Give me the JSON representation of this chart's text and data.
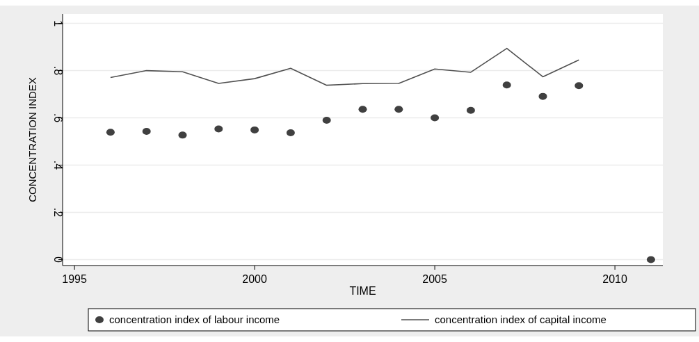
{
  "chart_data": {
    "type": "scatter",
    "xlabel": "TIME",
    "ylabel": "CONCENTRATION INDEX",
    "xlim": [
      1994.67,
      2011.33
    ],
    "xticks": [
      1995,
      2000,
      2005,
      2010
    ],
    "ylim": [
      -0.025,
      1.04
    ],
    "yticks": [
      {
        "value": 0,
        "label": "0"
      },
      {
        "value": 0.2,
        "label": ".2"
      },
      {
        "value": 0.4,
        "label": ".4"
      },
      {
        "value": 0.6,
        "label": ".6"
      },
      {
        "value": 0.8,
        "label": ".8"
      },
      {
        "value": 1,
        "label": "1"
      }
    ],
    "grid": "y",
    "legend": "bottom",
    "series": [
      {
        "name": "concentration index of labour income",
        "marker": "circle",
        "color": "#404040",
        "x": [
          1996,
          1997,
          1998,
          1999,
          2000,
          2001,
          2002,
          2003,
          2004,
          2005,
          2006,
          2007,
          2008,
          2009,
          2011
        ],
        "values": [
          0.539,
          0.543,
          0.527,
          0.553,
          0.549,
          0.537,
          0.59,
          0.636,
          0.636,
          0.6,
          0.632,
          0.739,
          0.691,
          0.736,
          0
        ]
      },
      {
        "name": "concentration index of capital income",
        "type": "line",
        "marker": "none",
        "line_style": "solid",
        "color": "#505050",
        "x": [
          1996,
          1997,
          1998,
          1999,
          2000,
          2001,
          2002,
          2003,
          2004,
          2005,
          2006,
          2007,
          2008,
          2009
        ],
        "values": [
          0.771,
          0.8,
          0.795,
          0.746,
          0.766,
          0.81,
          0.738,
          0.745,
          0.746,
          0.807,
          0.793,
          0.894,
          0.774,
          0.845
        ]
      }
    ]
  }
}
